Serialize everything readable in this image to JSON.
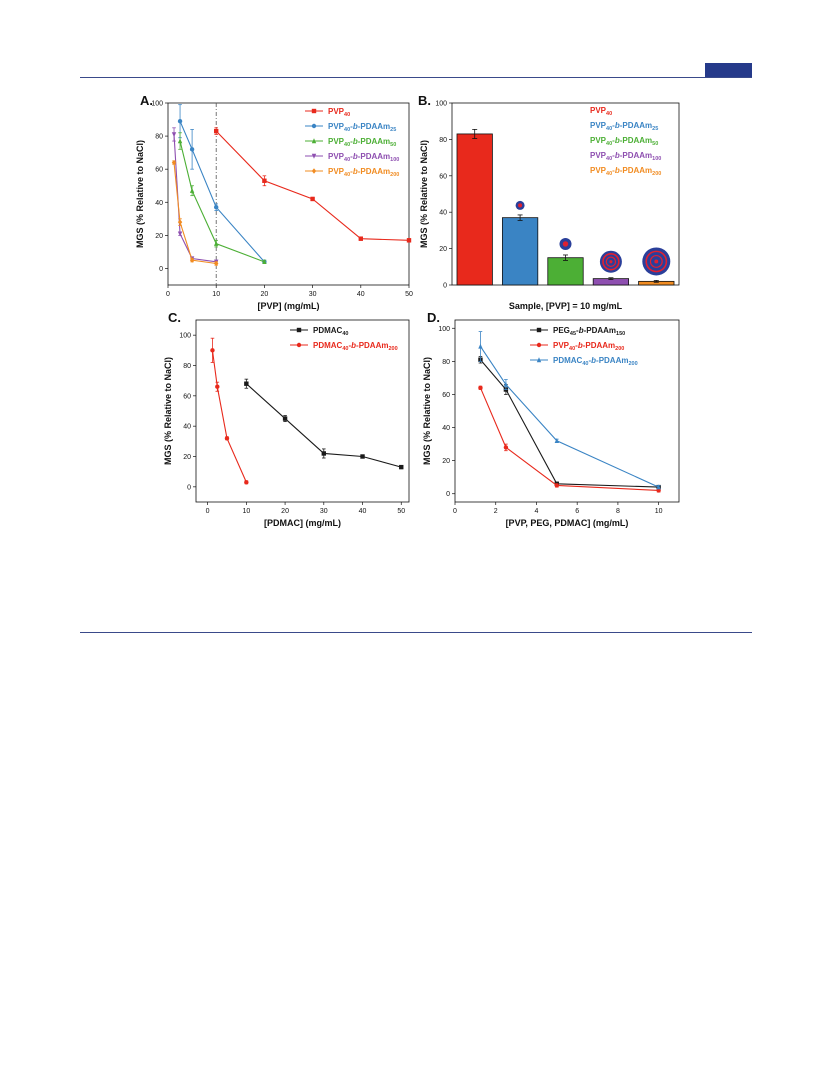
{
  "colors": {
    "red": "#e8291c",
    "blue": "#3a84c4",
    "green": "#4caf35",
    "purple": "#8e4fb0",
    "orange": "#f18c22",
    "black": "#1a1a1a",
    "rule": "#3a4a8a",
    "badge": "#253a8a"
  },
  "chart_data": [
    {
      "panel": "A.",
      "type": "line",
      "xlabel": "[PVP] (mg/mL)",
      "ylabel": "MGS (% Relative to NaCl)",
      "xlim": [
        0,
        50
      ],
      "ylim": [
        -10,
        100
      ],
      "xticks": [
        "0",
        "10",
        "20",
        "30",
        "40",
        "50"
      ],
      "yticks": [
        "0",
        "20",
        "40",
        "60",
        "80",
        "100"
      ],
      "grid": false,
      "legend_position": "top-right",
      "reference_line_x": 10,
      "series": [
        {
          "name": "PVP40",
          "marker": "square",
          "color": "red",
          "x": [
            10,
            20,
            30,
            40,
            50
          ],
          "y": [
            83,
            53,
            42,
            18,
            17
          ],
          "err": [
            2,
            3,
            1,
            1,
            1
          ]
        },
        {
          "name": "PVP40-b-PDAAm25",
          "marker": "circle",
          "color": "blue",
          "x": [
            2.5,
            5,
            10,
            20
          ],
          "y": [
            89,
            72,
            37,
            4
          ],
          "err": [
            10,
            12,
            2,
            1
          ]
        },
        {
          "name": "PVP40-b-PDAAm50",
          "marker": "triangle-up",
          "color": "green",
          "x": [
            2.5,
            5,
            10,
            20
          ],
          "y": [
            77,
            47,
            15,
            4
          ],
          "err": [
            5,
            3,
            2,
            1
          ]
        },
        {
          "name": "PVP40-b-PDAAm100",
          "marker": "triangle-down",
          "color": "purple",
          "x": [
            1.25,
            2.5,
            5,
            10
          ],
          "y": [
            81,
            21,
            6,
            4
          ],
          "err": [
            4,
            1,
            1,
            1
          ]
        },
        {
          "name": "PVP40-b-PDAAm200",
          "marker": "diamond",
          "color": "orange",
          "x": [
            1.25,
            2.5,
            5,
            10
          ],
          "y": [
            64,
            28,
            5,
            3
          ],
          "err": [
            1,
            2,
            1,
            1
          ]
        }
      ],
      "legend": [
        {
          "base": "PVP",
          "sub": "40",
          "rest": "",
          "sub2": "",
          "color": "red",
          "marker": "square"
        },
        {
          "base": "PVP",
          "sub": "40",
          "rest": "-b-PDAAm",
          "sub2": "25",
          "color": "blue",
          "marker": "circle"
        },
        {
          "base": "PVP",
          "sub": "40",
          "rest": "-b-PDAAm",
          "sub2": "50",
          "color": "green",
          "marker": "triangle-up"
        },
        {
          "base": "PVP",
          "sub": "40",
          "rest": "-b-PDAAm",
          "sub2": "100",
          "color": "purple",
          "marker": "triangle-down"
        },
        {
          "base": "PVP",
          "sub": "40",
          "rest": "-b-PDAAm",
          "sub2": "200",
          "color": "orange",
          "marker": "diamond"
        }
      ]
    },
    {
      "panel": "B.",
      "type": "bar",
      "xlabel": "Sample, [PVP] = 10 mg/mL",
      "ylabel": "MGS (% Relative to NaCl)",
      "ylim": [
        0,
        100
      ],
      "yticks": [
        "0",
        "20",
        "40",
        "60",
        "80",
        "100"
      ],
      "grid": false,
      "legend_position": "top-right",
      "categories": [
        "PVP40",
        "PVP40-b-PDAAm25",
        "PVP40-b-PDAAm50",
        "PVP40-b-PDAAm100",
        "PVP40-b-PDAAm200"
      ],
      "values": [
        83,
        37,
        15,
        3.5,
        2
      ],
      "err": [
        2.5,
        1.5,
        1.5,
        0.5,
        0.5
      ],
      "bar_colors": [
        "red",
        "blue",
        "green",
        "purple",
        "orange"
      ],
      "legend": [
        {
          "base": "PVP",
          "sub": "40",
          "rest": "",
          "sub2": "",
          "color": "red"
        },
        {
          "base": "PVP",
          "sub": "40",
          "rest": "-b-PDAAm",
          "sub2": "25",
          "color": "blue"
        },
        {
          "base": "PVP",
          "sub": "40",
          "rest": "-b-PDAAm",
          "sub2": "50",
          "color": "green"
        },
        {
          "base": "PVP",
          "sub": "40",
          "rest": "-b-PDAAm",
          "sub2": "100",
          "color": "purple"
        },
        {
          "base": "PVP",
          "sub": "40",
          "rest": "-b-PDAAm",
          "sub2": "200",
          "color": "orange"
        }
      ]
    },
    {
      "panel": "C.",
      "type": "line",
      "xlabel": "[PDMAC] (mg/mL)",
      "ylabel": "MGS (% Relative to NaCl)",
      "xlim": [
        -3,
        52
      ],
      "ylim": [
        -10,
        110
      ],
      "xticks": [
        "0",
        "10",
        "20",
        "30",
        "40",
        "50"
      ],
      "yticks": [
        "0",
        "20",
        "40",
        "60",
        "80",
        "100"
      ],
      "grid": false,
      "legend_position": "top-right",
      "series": [
        {
          "name": "PDMAC40",
          "marker": "square",
          "color": "black",
          "x": [
            10,
            20,
            30,
            40,
            50
          ],
          "y": [
            68,
            45,
            22,
            20,
            13
          ],
          "err": [
            3,
            2,
            3,
            1,
            1
          ]
        },
        {
          "name": "PDMAC40-b-PDAAm200",
          "marker": "circle",
          "color": "red",
          "x": [
            1.25,
            2.5,
            5,
            10
          ],
          "y": [
            90,
            66,
            32,
            3
          ],
          "err": [
            8,
            3,
            1,
            1
          ]
        }
      ],
      "legend": [
        {
          "base": "PDMAC",
          "sub": "40",
          "rest": "",
          "sub2": "",
          "color": "black",
          "marker": "square"
        },
        {
          "base": "PDMAC",
          "sub": "40",
          "rest": "-b-PDAAm",
          "sub2": "200",
          "color": "red",
          "marker": "circle"
        }
      ]
    },
    {
      "panel": "D.",
      "type": "line",
      "xlabel": "[PVP, PEG, PDMAC] (mg/mL)",
      "ylabel": "MGS (% Relative to NaCl)",
      "xlim": [
        0,
        11
      ],
      "ylim": [
        -5,
        105
      ],
      "xticks": [
        "0",
        "2",
        "4",
        "6",
        "8",
        "10"
      ],
      "yticks": [
        "0",
        "20",
        "40",
        "60",
        "80",
        "100"
      ],
      "grid": false,
      "legend_position": "top-right",
      "series": [
        {
          "name": "PEG45-b-PDAAm150",
          "marker": "square",
          "color": "black",
          "x": [
            1.25,
            2.5,
            5,
            10
          ],
          "y": [
            81,
            63,
            6,
            4
          ],
          "err": [
            2,
            3,
            1,
            1
          ]
        },
        {
          "name": "PVP40-b-PDAAm200",
          "marker": "circle",
          "color": "red",
          "x": [
            1.25,
            2.5,
            5,
            10
          ],
          "y": [
            64,
            28,
            5,
            2
          ],
          "err": [
            1,
            2,
            1,
            1
          ]
        },
        {
          "name": "PDMAC40-b-PDAAm200",
          "marker": "triangle-up",
          "color": "blue",
          "x": [
            1.25,
            2.5,
            5,
            10
          ],
          "y": [
            89,
            66,
            32,
            4
          ],
          "err": [
            9,
            3,
            1,
            1
          ]
        }
      ],
      "legend": [
        {
          "base": "PEG",
          "sub": "45",
          "rest": "-b-PDAAm",
          "sub2": "150",
          "color": "black",
          "marker": "square"
        },
        {
          "base": "PVP",
          "sub": "40",
          "rest": "-b-PDAAm",
          "sub2": "200",
          "color": "red",
          "marker": "circle"
        },
        {
          "base": "PDMAC",
          "sub": "40",
          "rest": "-b-PDAAm",
          "sub2": "200",
          "color": "blue",
          "marker": "triangle-up"
        }
      ]
    }
  ]
}
